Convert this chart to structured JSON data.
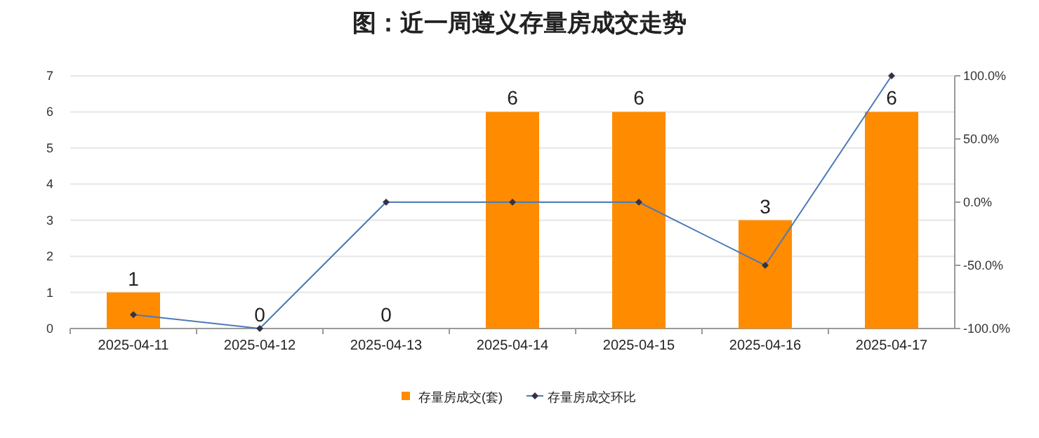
{
  "chart_data": {
    "type": "bar",
    "title": "图：近一周遵义存量房成交走势",
    "categories": [
      "2025-04-11",
      "2025-04-12",
      "2025-04-13",
      "2025-04-14",
      "2025-04-15",
      "2025-04-16",
      "2025-04-17"
    ],
    "series": [
      {
        "name": "存量房成交(套)",
        "color": "#ff8c00",
        "values": [
          1,
          0,
          0,
          6,
          6,
          3,
          6
        ],
        "value_labels": [
          "1",
          "0",
          "0",
          "6",
          "6",
          "3",
          "6"
        ]
      },
      {
        "name": "存量房成交环比",
        "type": "line",
        "axis": "y2",
        "color": "#4a7ab8",
        "marker": "diamond",
        "values": [
          -89,
          -100,
          0,
          0,
          0,
          -50,
          100
        ]
      }
    ],
    "ylim": [
      0,
      7
    ],
    "yticks": [
      0,
      1,
      2,
      3,
      4,
      5,
      6,
      7
    ],
    "y2lim": [
      -100,
      100
    ],
    "y2ticks": [
      {
        "value": -100,
        "label": "-100.0%"
      },
      {
        "value": -50,
        "label": "-50.0%"
      },
      {
        "value": 0,
        "label": "0.0%"
      },
      {
        "value": 50,
        "label": "50.0%"
      },
      {
        "value": 100,
        "label": "100.0%"
      }
    ],
    "grid": "y",
    "legend": "bottom"
  }
}
